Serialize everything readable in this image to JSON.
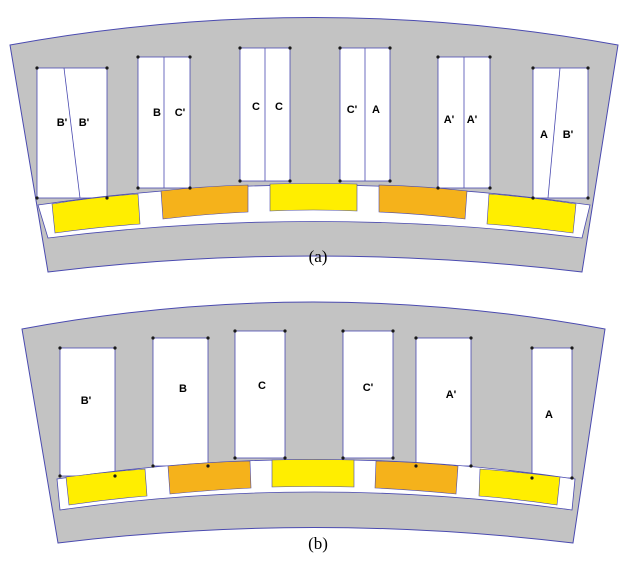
{
  "figure_a": {
    "caption": "(a)",
    "coil_labels": [
      [
        "B'",
        "B'"
      ],
      [
        "B",
        "C'"
      ],
      [
        "C",
        "C"
      ],
      [
        "C'",
        "A"
      ],
      [
        "A'",
        "A'"
      ],
      [
        "A",
        "B'"
      ]
    ]
  },
  "figure_b": {
    "caption": "(b)",
    "coil_labels": [
      "B'",
      "B",
      "C",
      "C'",
      "A'",
      "A"
    ]
  },
  "colors": {
    "core": "#c3c3c3",
    "outline": "#4a4ab0",
    "magnet_yellow": "#ffee00",
    "magnet_orange": "#f5b21b",
    "slot": "#ffffff"
  },
  "magnet_pattern": [
    "yellow",
    "orange",
    "yellow",
    "orange",
    "yellow"
  ]
}
